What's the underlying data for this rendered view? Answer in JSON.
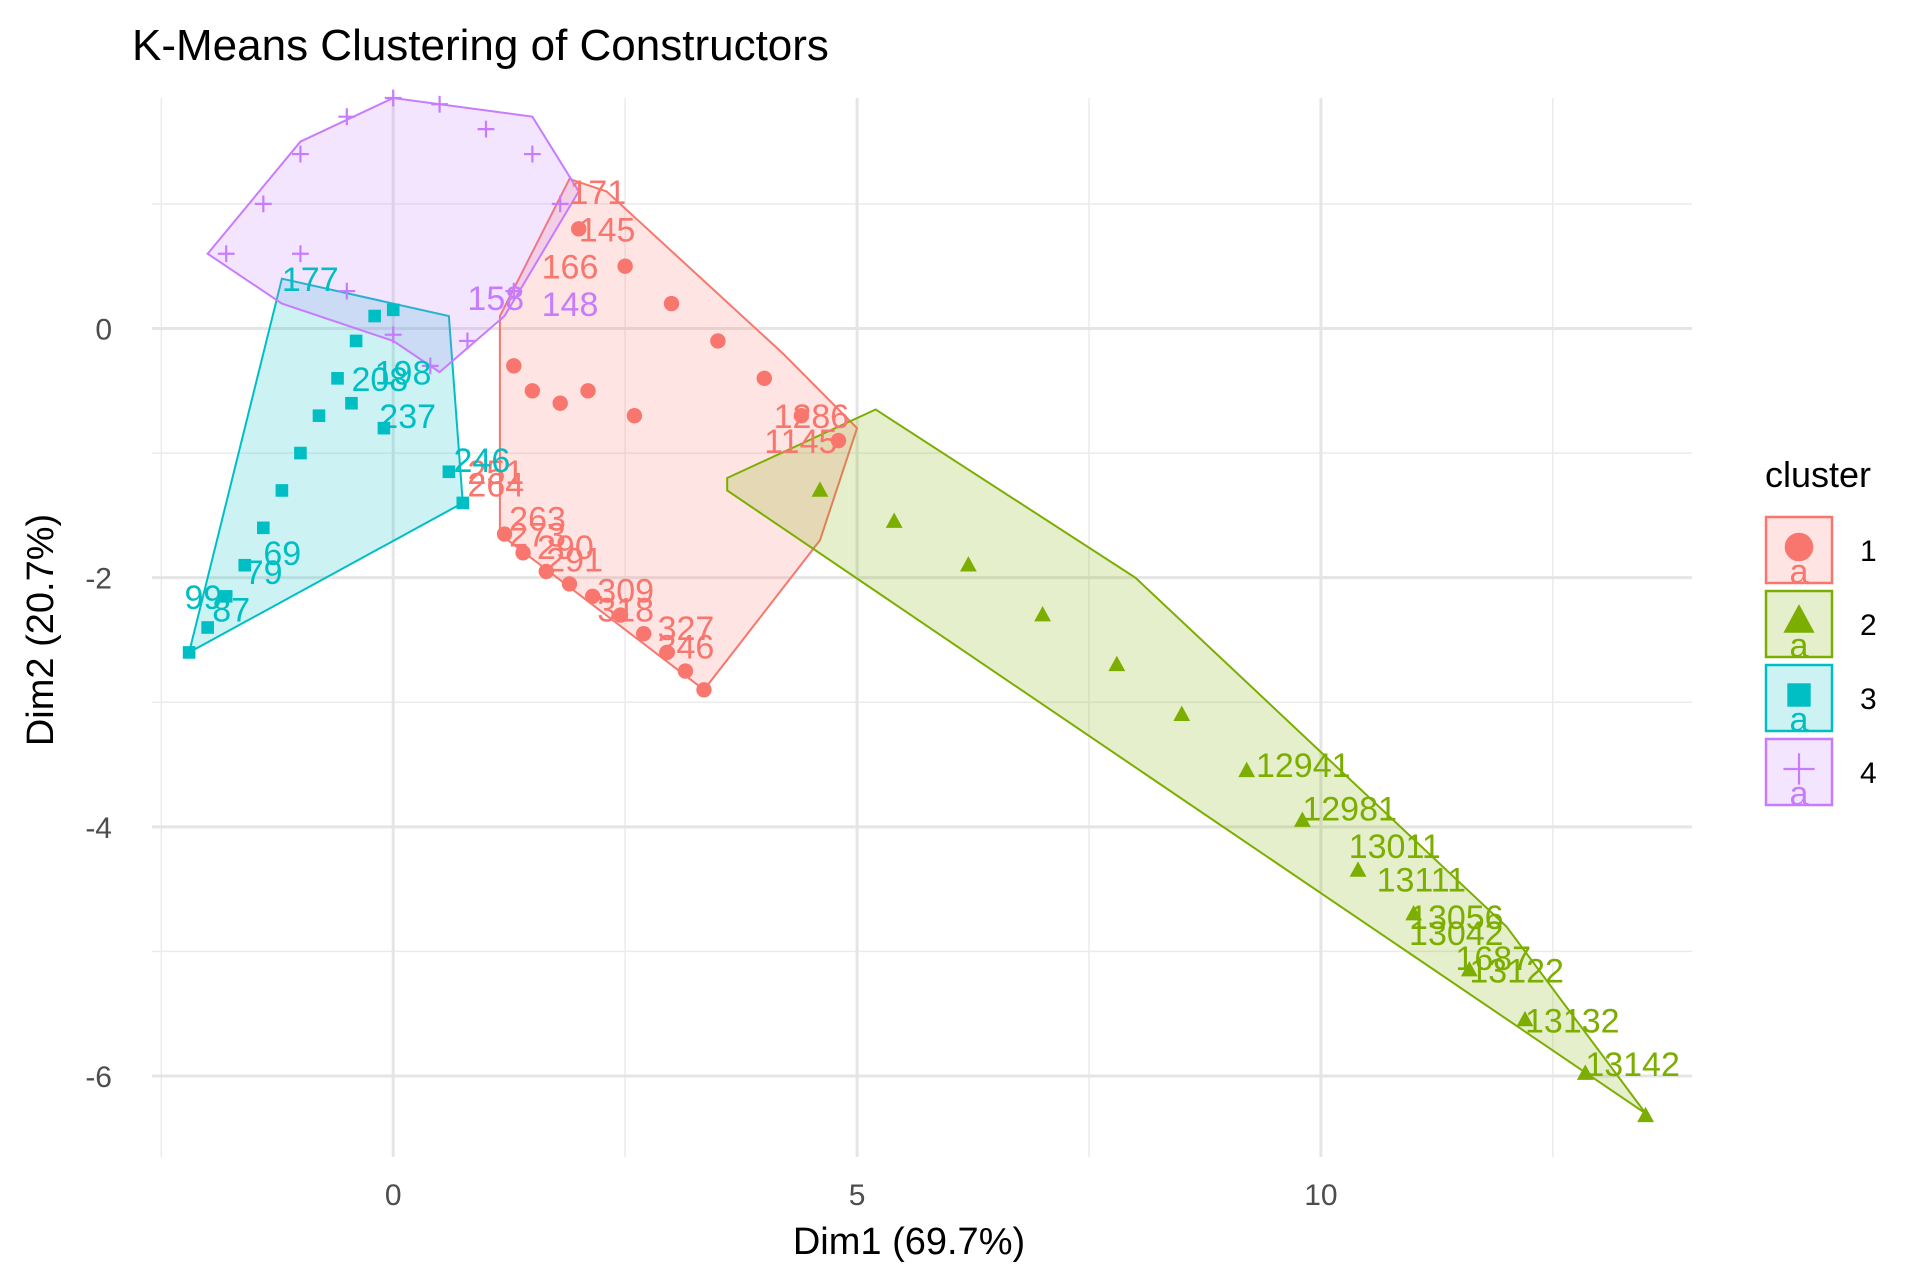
{
  "chart_data": {
    "type": "scatter",
    "title": "K-Means Clustering of Constructors",
    "xlabel": "Dim1 (69.7%)",
    "ylabel": "Dim2 (20.7%)",
    "xlim": [
      -2.6,
      14.0
    ],
    "ylim": [
      -6.65,
      1.85
    ],
    "xticks": [
      0,
      5,
      10
    ],
    "yticks": [
      -6,
      -4,
      -2,
      0
    ],
    "grid": true,
    "legend": {
      "title": "cluster",
      "position": "right",
      "key_text": "a",
      "entries": [
        {
          "label": "1",
          "color": "#F8766D",
          "shape": "circle"
        },
        {
          "label": "2",
          "color": "#7CAE00",
          "shape": "triangle"
        },
        {
          "label": "3",
          "color": "#00BFC4",
          "shape": "square"
        },
        {
          "label": "4",
          "color": "#C77CFF",
          "shape": "cross"
        }
      ]
    },
    "series": [
      {
        "name": "1",
        "color": "#F8766D",
        "shape": "circle",
        "hull": [
          [
            1.15,
            0.1
          ],
          [
            1.9,
            1.2
          ],
          [
            2.3,
            1.1
          ],
          [
            4.2,
            -0.2
          ],
          [
            5.0,
            -0.8
          ],
          [
            4.6,
            -1.7
          ],
          [
            3.35,
            -2.9
          ],
          [
            1.15,
            -1.65
          ],
          [
            1.15,
            -0.2
          ]
        ],
        "points": [
          [
            1.2,
            -1.65
          ],
          [
            1.4,
            -1.8
          ],
          [
            1.65,
            -1.95
          ],
          [
            1.9,
            -2.05
          ],
          [
            2.15,
            -2.15
          ],
          [
            2.45,
            -2.3
          ],
          [
            2.7,
            -2.45
          ],
          [
            2.95,
            -2.6
          ],
          [
            3.15,
            -2.75
          ],
          [
            3.35,
            -2.9
          ],
          [
            1.5,
            -0.5
          ],
          [
            1.8,
            -0.6
          ],
          [
            2.1,
            -0.5
          ],
          [
            2.6,
            -0.7
          ],
          [
            1.3,
            -0.3
          ],
          [
            2.0,
            0.8
          ],
          [
            2.5,
            0.5
          ],
          [
            3.0,
            0.2
          ],
          [
            3.5,
            -0.1
          ],
          [
            4.0,
            -0.4
          ],
          [
            4.4,
            -0.7
          ],
          [
            4.8,
            -0.9
          ]
        ],
        "labels": [
          {
            "text": "264",
            "x": 0.8,
            "y": -1.35
          },
          {
            "text": "251",
            "x": 0.8,
            "y": -1.25
          },
          {
            "text": "273",
            "x": 1.25,
            "y": -1.75
          },
          {
            "text": "263",
            "x": 1.25,
            "y": -1.62
          },
          {
            "text": "291",
            "x": 1.65,
            "y": -1.95
          },
          {
            "text": "290",
            "x": 1.55,
            "y": -1.85
          },
          {
            "text": "309",
            "x": 2.2,
            "y": -2.2
          },
          {
            "text": "318",
            "x": 2.2,
            "y": -2.35
          },
          {
            "text": "327",
            "x": 2.85,
            "y": -2.5
          },
          {
            "text": "346",
            "x": 2.85,
            "y": -2.65
          },
          {
            "text": "1286",
            "x": 4.1,
            "y": -0.8
          },
          {
            "text": "1145",
            "x": 4.0,
            "y": -1.0
          },
          {
            "text": "171",
            "x": 1.9,
            "y": 1.0
          },
          {
            "text": "145",
            "x": 2.0,
            "y": 0.7
          },
          {
            "text": "166",
            "x": 1.6,
            "y": 0.4
          }
        ]
      },
      {
        "name": "2",
        "color": "#7CAE00",
        "shape": "triangle",
        "hull": [
          [
            3.6,
            -1.2
          ],
          [
            5.2,
            -0.65
          ],
          [
            8.0,
            -2.0
          ],
          [
            10.0,
            -3.4
          ],
          [
            12.0,
            -4.8
          ],
          [
            13.5,
            -6.3
          ],
          [
            3.6,
            -1.3
          ]
        ],
        "points": [
          [
            13.5,
            -6.32
          ],
          [
            12.85,
            -5.98
          ],
          [
            12.2,
            -5.55
          ],
          [
            11.6,
            -5.15
          ],
          [
            11.0,
            -4.7
          ],
          [
            10.4,
            -4.35
          ],
          [
            9.8,
            -3.95
          ],
          [
            9.2,
            -3.55
          ],
          [
            8.5,
            -3.1
          ],
          [
            7.8,
            -2.7
          ],
          [
            7.0,
            -2.3
          ],
          [
            6.2,
            -1.9
          ],
          [
            5.4,
            -1.55
          ],
          [
            4.6,
            -1.3
          ]
        ],
        "labels": [
          {
            "text": "13142",
            "x": 12.85,
            "y": -6.0
          },
          {
            "text": "13132",
            "x": 12.2,
            "y": -5.65
          },
          {
            "text": "13122",
            "x": 11.6,
            "y": -5.25
          },
          {
            "text": "1687",
            "x": 11.45,
            "y": -5.15
          },
          {
            "text": "13056",
            "x": 10.95,
            "y": -4.82
          },
          {
            "text": "13042",
            "x": 10.95,
            "y": -4.95
          },
          {
            "text": "13111",
            "x": 10.6,
            "y": -4.52
          },
          {
            "text": "13011",
            "x": 10.3,
            "y": -4.25
          },
          {
            "text": "12981",
            "x": 9.8,
            "y": -3.95
          },
          {
            "text": "12941",
            "x": 9.3,
            "y": -3.6
          }
        ]
      },
      {
        "name": "3",
        "color": "#00BFC4",
        "shape": "square",
        "hull": [
          [
            -2.2,
            -2.6
          ],
          [
            -1.2,
            0.4
          ],
          [
            0.6,
            0.1
          ],
          [
            0.75,
            -1.4
          ],
          [
            -2.2,
            -2.6
          ]
        ],
        "points": [
          [
            -2.2,
            -2.6
          ],
          [
            -2.0,
            -2.4
          ],
          [
            -1.8,
            -2.15
          ],
          [
            -1.6,
            -1.9
          ],
          [
            -1.4,
            -1.6
          ],
          [
            -1.2,
            -1.3
          ],
          [
            -1.0,
            -1.0
          ],
          [
            -0.8,
            -0.7
          ],
          [
            -0.6,
            -0.4
          ],
          [
            -0.4,
            -0.1
          ],
          [
            -0.2,
            0.1
          ],
          [
            0.0,
            0.15
          ],
          [
            -0.45,
            -0.6
          ],
          [
            -0.1,
            -0.8
          ],
          [
            0.6,
            -1.15
          ],
          [
            0.75,
            -1.4
          ]
        ],
        "labels": [
          {
            "text": "99",
            "x": -2.25,
            "y": -2.25
          },
          {
            "text": "87",
            "x": -1.95,
            "y": -2.35
          },
          {
            "text": "79",
            "x": -1.6,
            "y": -2.05
          },
          {
            "text": "69",
            "x": -1.4,
            "y": -1.9
          },
          {
            "text": "246",
            "x": 0.65,
            "y": -1.15
          },
          {
            "text": "237",
            "x": -0.15,
            "y": -0.8
          },
          {
            "text": "208",
            "x": -0.45,
            "y": -0.5
          },
          {
            "text": "198",
            "x": -0.2,
            "y": -0.45
          },
          {
            "text": "177",
            "x": -1.2,
            "y": 0.3
          }
        ]
      },
      {
        "name": "4",
        "color": "#C77CFF",
        "shape": "cross",
        "hull": [
          [
            -2.0,
            0.6
          ],
          [
            -1.0,
            1.5
          ],
          [
            0.0,
            1.85
          ],
          [
            1.5,
            1.7
          ],
          [
            2.0,
            1.1
          ],
          [
            1.2,
            0.1
          ],
          [
            0.5,
            -0.35
          ],
          [
            0.0,
            -0.1
          ],
          [
            -1.2,
            0.2
          ],
          [
            -2.0,
            0.6
          ]
        ],
        "points": [
          [
            -1.8,
            0.6
          ],
          [
            -1.4,
            1.0
          ],
          [
            -1.0,
            1.4
          ],
          [
            -0.5,
            1.7
          ],
          [
            0.0,
            1.85
          ],
          [
            0.5,
            1.8
          ],
          [
            1.0,
            1.6
          ],
          [
            1.5,
            1.4
          ],
          [
            1.8,
            1.0
          ],
          [
            1.3,
            0.3
          ],
          [
            0.8,
            -0.1
          ],
          [
            0.4,
            -0.3
          ],
          [
            0.0,
            -0.05
          ],
          [
            -0.5,
            0.3
          ],
          [
            -1.0,
            0.6
          ]
        ],
        "labels": [
          {
            "text": "158",
            "x": 0.8,
            "y": 0.15
          },
          {
            "text": "148",
            "x": 1.6,
            "y": 0.1
          }
        ]
      }
    ]
  }
}
